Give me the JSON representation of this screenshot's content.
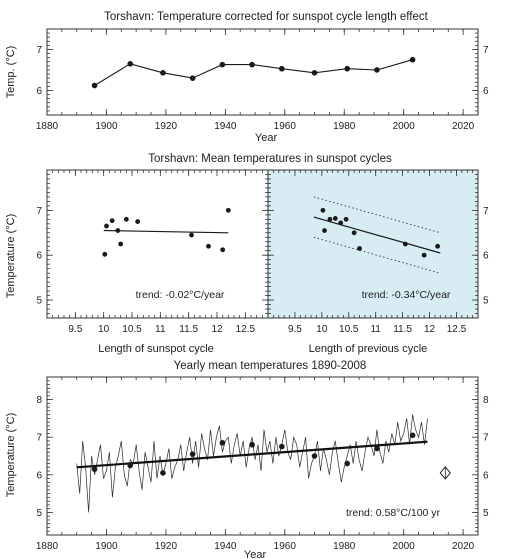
{
  "chart_data": [
    {
      "type": "line",
      "title": "Torshavn: Temperature corrected for sunspot cycle length effect",
      "xlabel": "Year",
      "ylabel": "Temp. (°C)",
      "xlim": [
        1880,
        2025
      ],
      "ylim": [
        5.4,
        7.5
      ],
      "xticks": [
        1880,
        1900,
        1920,
        1940,
        1960,
        1980,
        2000,
        2020
      ],
      "yticks": [
        6,
        7
      ],
      "x": [
        1896,
        1908,
        1919,
        1929,
        1939,
        1949,
        1959,
        1970,
        1981,
        1991,
        2003
      ],
      "y": [
        6.12,
        6.65,
        6.43,
        6.3,
        6.63,
        6.63,
        6.53,
        6.43,
        6.53,
        6.5,
        6.75
      ]
    },
    {
      "type": "scatter",
      "title": "Torshavn: Mean temperatures in sunspot cycles",
      "xlabel": "Length of sunspot cycle",
      "ylabel": "Temperature (°C)",
      "xlim": [
        9.0,
        12.9
      ],
      "ylim": [
        4.6,
        7.9
      ],
      "xticks": [
        9.5,
        10,
        10.5,
        11,
        11.5,
        12,
        12.5
      ],
      "yticks": [
        5,
        6,
        7
      ],
      "x": [
        10.02,
        10.05,
        10.15,
        10.25,
        10.3,
        10.4,
        10.6,
        11.55,
        11.85,
        12.1,
        12.2
      ],
      "y": [
        6.02,
        6.65,
        6.77,
        6.55,
        6.25,
        6.8,
        6.75,
        6.45,
        6.2,
        6.12,
        7.0
      ],
      "trend_line": {
        "x": [
          10.0,
          12.2
        ],
        "y": [
          6.55,
          6.5
        ]
      },
      "annotation": "trend: -0.02°C/year"
    },
    {
      "type": "scatter",
      "xlabel": "Length of previous cycle",
      "xlim": [
        9.0,
        12.9
      ],
      "ylim": [
        4.6,
        7.9
      ],
      "xticks": [
        9.5,
        10,
        10.5,
        11,
        11.5,
        12,
        12.5
      ],
      "yticks": [
        5,
        6,
        7
      ],
      "background": "#d8edf3",
      "x": [
        10.02,
        10.05,
        10.15,
        10.25,
        10.35,
        10.45,
        10.6,
        10.7,
        11.55,
        11.9,
        12.15
      ],
      "y": [
        7.0,
        6.55,
        6.8,
        6.82,
        6.72,
        6.8,
        6.5,
        6.15,
        6.25,
        6.0,
        6.2
      ],
      "trend_line": {
        "x": [
          9.85,
          12.2
        ],
        "y": [
          6.85,
          6.05
        ]
      },
      "band_upper": {
        "x": [
          9.85,
          12.2
        ],
        "y": [
          7.3,
          6.5
        ]
      },
      "band_lower": {
        "x": [
          9.85,
          12.2
        ],
        "y": [
          6.4,
          5.6
        ]
      },
      "annotation": "trend: -0.34°C/year"
    },
    {
      "type": "line",
      "title": "Yearly mean temperatures 1890-2008",
      "xlabel": "Year",
      "ylabel": "Temperature (°C)",
      "xlim": [
        1880,
        2025
      ],
      "ylim": [
        4.4,
        8.6
      ],
      "xticks": [
        1880,
        1900,
        1920,
        1940,
        1960,
        1980,
        2000,
        2020
      ],
      "yticks": [
        5,
        6,
        7,
        8
      ],
      "series": [
        {
          "x": [
            1890,
            1891,
            1892,
            1893,
            1894,
            1895,
            1896,
            1897,
            1898,
            1899,
            1900,
            1901,
            1902,
            1903,
            1904,
            1905,
            1906,
            1907,
            1908,
            1909,
            1910,
            1911,
            1912,
            1913,
            1914,
            1915,
            1916,
            1917,
            1918,
            1919,
            1920,
            1921,
            1922,
            1923,
            1924,
            1925,
            1926,
            1927,
            1928,
            1929,
            1930,
            1931,
            1932,
            1933,
            1934,
            1935,
            1936,
            1937,
            1938,
            1939,
            1940,
            1941,
            1942,
            1943,
            1944,
            1945,
            1946,
            1947,
            1948,
            1949,
            1950,
            1951,
            1952,
            1953,
            1954,
            1955,
            1956,
            1957,
            1958,
            1959,
            1960,
            1961,
            1962,
            1963,
            1964,
            1965,
            1966,
            1967,
            1968,
            1969,
            1970,
            1971,
            1972,
            1973,
            1974,
            1975,
            1976,
            1977,
            1978,
            1979,
            1980,
            1981,
            1982,
            1983,
            1984,
            1985,
            1986,
            1987,
            1988,
            1989,
            1990,
            1991,
            1992,
            1993,
            1994,
            1995,
            1996,
            1997,
            1998,
            1999,
            2000,
            2001,
            2002,
            2003,
            2004,
            2005,
            2006,
            2007,
            2008
          ],
          "y": [
            6.3,
            5.5,
            6.9,
            6.2,
            5.0,
            6.5,
            6.0,
            6.4,
            6.8,
            5.9,
            6.1,
            6.6,
            5.4,
            6.2,
            6.5,
            6.9,
            6.0,
            5.7,
            6.4,
            6.3,
            6.8,
            6.1,
            5.6,
            6.6,
            6.2,
            5.8,
            6.9,
            5.9,
            6.5,
            6.0,
            6.3,
            6.7,
            5.9,
            6.2,
            6.4,
            6.8,
            6.1,
            6.6,
            7.0,
            6.3,
            6.9,
            6.2,
            7.1,
            6.7,
            6.4,
            7.2,
            6.5,
            7.0,
            7.3,
            6.6,
            6.9,
            7.0,
            6.3,
            6.8,
            7.1,
            6.5,
            6.9,
            6.2,
            6.7,
            7.0,
            6.4,
            6.8,
            6.1,
            7.2,
            6.6,
            6.9,
            6.3,
            7.0,
            6.5,
            6.8,
            7.2,
            6.6,
            6.4,
            7.0,
            6.8,
            6.2,
            6.6,
            7.0,
            5.9,
            6.3,
            6.5,
            6.9,
            6.1,
            6.7,
            6.4,
            6.0,
            6.6,
            6.9,
            6.3,
            5.8,
            6.2,
            6.5,
            6.8,
            6.3,
            6.9,
            6.4,
            6.1,
            6.6,
            7.0,
            6.8,
            6.5,
            7.2,
            6.6,
            6.3,
            6.9,
            6.6,
            7.1,
            6.8,
            7.4,
            6.9,
            7.1,
            7.5,
            6.8,
            7.6,
            7.2,
            7.0,
            7.4,
            6.8,
            7.5
          ]
        },
        {
          "x": [
            1896,
            1908,
            1919,
            1929,
            1939,
            1949,
            1959,
            1970,
            1981,
            1991,
            2003
          ],
          "y": [
            6.15,
            6.25,
            6.05,
            6.55,
            6.85,
            6.8,
            6.75,
            6.5,
            6.3,
            6.7,
            7.05
          ]
        }
      ],
      "trend_line": {
        "x": [
          1890,
          2008
        ],
        "y": [
          6.2,
          6.88
        ]
      },
      "marker_point": {
        "x": 2014,
        "y": 6.05
      },
      "annotation": "trend: 0.58°C/100 yr"
    }
  ]
}
